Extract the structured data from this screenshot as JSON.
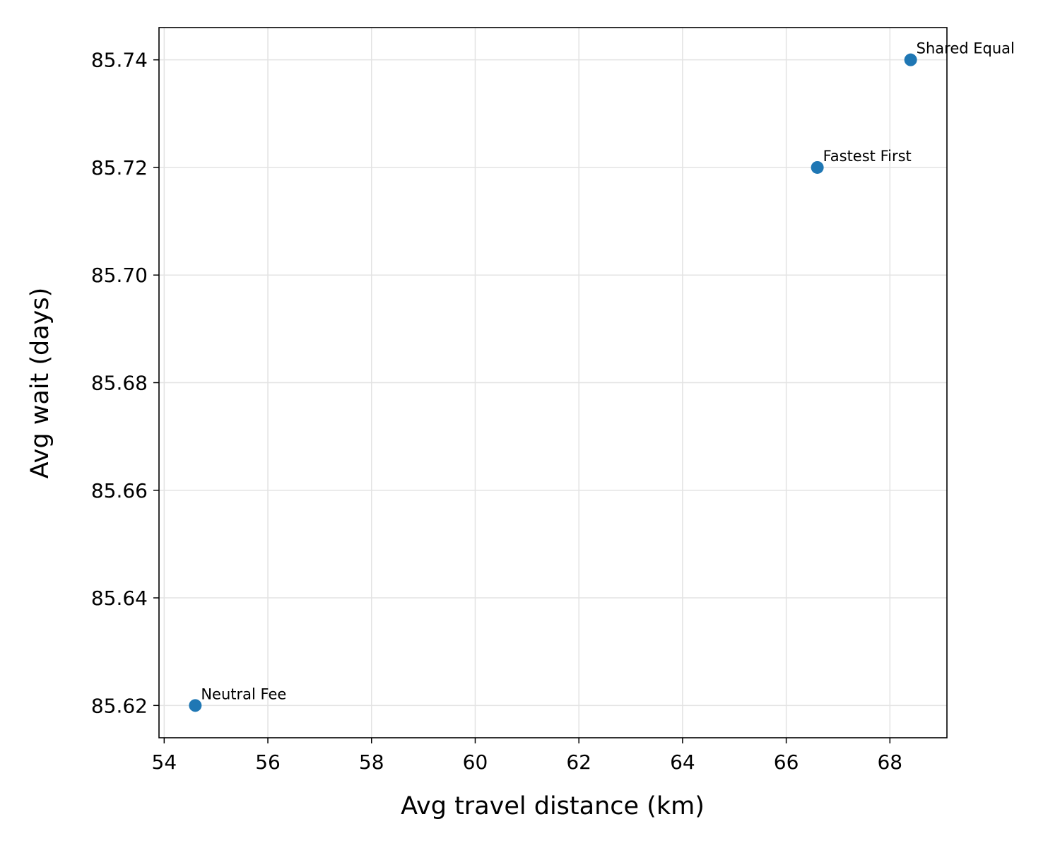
{
  "chart_data": {
    "type": "scatter",
    "xlabel": "Avg travel distance (km)",
    "ylabel": "Avg wait (days)",
    "xlim": [
      53.9,
      69.1
    ],
    "ylim": [
      85.614,
      85.746
    ],
    "xticks": [
      54,
      56,
      58,
      60,
      62,
      64,
      66,
      68
    ],
    "yticks": [
      85.62,
      85.64,
      85.66,
      85.68,
      85.7,
      85.72,
      85.74
    ],
    "ytick_labels": [
      "85.62",
      "85.64",
      "85.66",
      "85.68",
      "85.70",
      "85.72",
      "85.74"
    ],
    "grid": true,
    "point_color": "#1f77b4",
    "points": [
      {
        "label": "Neutral Fee",
        "x": 54.6,
        "y": 85.62
      },
      {
        "label": "Fastest First",
        "x": 66.6,
        "y": 85.72
      },
      {
        "label": "Shared Equal",
        "x": 68.4,
        "y": 85.74
      }
    ]
  }
}
